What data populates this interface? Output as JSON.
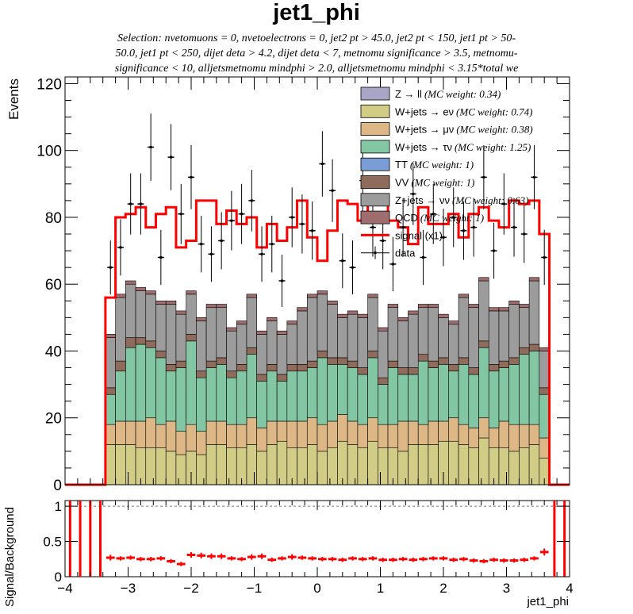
{
  "title": "jet1_phi",
  "selection_lines": [
    "Selection: nvetomuons = 0, nvetoelectrons = 0, jet2 pt > 45.0, jet2 pt < 150, jet1 pt > 50-",
    "50.0, jet1 pt < 250, dijet deta > 4.2, dijet deta < 7, metnomu significance > 3.5, metnomu-",
    "significance < 10, alljetsmetnomu mindphi > 2.0, alljetsmetnomu mindphi < 3.15*total we"
  ],
  "colors": {
    "zll": "#a9a5c6",
    "wen": "#d2cd86",
    "wmn": "#ddb785",
    "wtn": "#82c6a3",
    "tt": "#7b9dd6",
    "vv": "#8f6b5c",
    "znn": "#9c9c9c",
    "qcd": "#9f6d6d",
    "signal": "#ff0000",
    "data": "#000000"
  },
  "legend": [
    {
      "key": "zll",
      "name": "Z → ll",
      "weight": "(MC weight: 0.34)"
    },
    {
      "key": "wen",
      "name": "W+jets → eν",
      "weight": "(MC weight: 0.74)"
    },
    {
      "key": "wmn",
      "name": "W+jets → μν",
      "weight": "(MC weight: 0.38)"
    },
    {
      "key": "wtn",
      "name": "W+jets → τν",
      "weight": "(MC weight: 1.25)"
    },
    {
      "key": "tt",
      "name": "TT",
      "weight": "(MC weight: 1)"
    },
    {
      "key": "vv",
      "name": "VV",
      "weight": "(MC weight: 1)"
    },
    {
      "key": "znn",
      "name": "Z+jets → νν",
      "weight": "(MC weight: 0.63)"
    },
    {
      "key": "qcd",
      "name": "QCD",
      "weight": "(MC weight: 1)"
    },
    {
      "key": "signal",
      "name": "signal (x1)",
      "weight": ""
    },
    {
      "key": "data",
      "name": "data",
      "weight": ""
    }
  ],
  "chart_data": [
    {
      "type": "histogram",
      "name": "main",
      "ylabel": "Events",
      "xlim": [
        -4,
        4
      ],
      "ylim": [
        0,
        122
      ],
      "yticks": [
        0,
        20,
        40,
        60,
        80,
        100,
        120
      ],
      "bin_edges_range": [
        -4,
        4
      ],
      "n_bins": 50,
      "series": {
        "wen": [
          0,
          0,
          0,
          0,
          12,
          12,
          12,
          11,
          11,
          11,
          10,
          9,
          10,
          9,
          12,
          12,
          11,
          11,
          12,
          10,
          12,
          13,
          11,
          11,
          12,
          10,
          11,
          13,
          12,
          11,
          13,
          11,
          11,
          10,
          12,
          12,
          12,
          13,
          13,
          12,
          11,
          14,
          11,
          11,
          10,
          11,
          12,
          8,
          0,
          0
        ],
        "wmn": [
          0,
          0,
          0,
          0,
          6,
          7,
          7,
          8,
          9,
          7,
          9,
          7,
          8,
          7,
          7,
          7,
          7,
          7,
          8,
          7,
          7,
          6,
          8,
          8,
          8,
          8,
          8,
          8,
          7,
          7,
          7,
          7,
          7,
          9,
          7,
          6,
          7,
          6,
          7,
          6,
          6,
          6,
          6,
          8,
          8,
          7,
          6,
          6,
          0,
          0
        ],
        "wtn": [
          0,
          0,
          0,
          0,
          9,
          15,
          22,
          23,
          21,
          20,
          15,
          19,
          25,
          16,
          16,
          17,
          14,
          16,
          19,
          14,
          15,
          12,
          15,
          15,
          15,
          20,
          17,
          15,
          16,
          15,
          18,
          12,
          17,
          14,
          14,
          19,
          16,
          17,
          14,
          18,
          16,
          21,
          17,
          16,
          18,
          21,
          22,
          13,
          0,
          0
        ],
        "vv": [
          0,
          0,
          0,
          0,
          2,
          3,
          3,
          2,
          2,
          2,
          2,
          2,
          2,
          2,
          2,
          2,
          2,
          2,
          2,
          2,
          2,
          2,
          2,
          2,
          2,
          2,
          2,
          2,
          2,
          2,
          2,
          2,
          2,
          2,
          2,
          2,
          2,
          2,
          2,
          2,
          2,
          2,
          2,
          2,
          2,
          2,
          2,
          2,
          0,
          0
        ],
        "znn": [
          0,
          0,
          0,
          0,
          15,
          19,
          16,
          14,
          14,
          14,
          18,
          14,
          12,
          15,
          16,
          15,
          12,
          12,
          15,
          12,
          13,
          12,
          12,
          16,
          19,
          17,
          16,
          12,
          14,
          15,
          16,
          14,
          16,
          14,
          16,
          14,
          16,
          12,
          12,
          18,
          18,
          18,
          16,
          15,
          16,
          12,
          19,
          11,
          0,
          0
        ],
        "qcd": [
          0,
          0,
          0,
          0,
          1,
          1,
          1,
          1,
          1,
          1,
          1,
          1,
          1,
          1,
          1,
          1,
          1,
          1,
          1,
          1,
          1,
          1,
          1,
          1,
          1,
          1,
          1,
          1,
          1,
          1,
          1,
          1,
          1,
          1,
          1,
          1,
          1,
          1,
          1,
          1,
          1,
          1,
          1,
          1,
          1,
          1,
          1,
          1,
          0,
          0
        ],
        "signal": [
          0,
          0,
          0,
          0,
          56,
          80,
          81,
          83,
          77,
          81,
          83,
          71,
          73,
          85,
          85,
          78,
          82,
          78,
          80,
          71,
          78,
          73,
          77,
          85,
          74,
          67,
          76,
          85,
          84,
          79,
          84,
          84,
          79,
          77,
          72,
          83,
          78,
          78,
          81,
          74,
          81,
          83,
          79,
          77,
          85,
          84,
          85,
          75,
          0,
          0
        ],
        "data": [
          0,
          0,
          0,
          0,
          65,
          71,
          84,
          84,
          101,
          68,
          98,
          81,
          92,
          72,
          69,
          73,
          79,
          81,
          85,
          69,
          72,
          61,
          80,
          78,
          76,
          96,
          88,
          67,
          65,
          91,
          77,
          73,
          66,
          77,
          87,
          68,
          81,
          74,
          80,
          76,
          77,
          92,
          70,
          84,
          77,
          75,
          92,
          68,
          0,
          0
        ],
        "data_err_note": "Poisson errors sqrt(N)"
      }
    },
    {
      "type": "scatter",
      "name": "ratio",
      "ylabel": "Signal/Background",
      "xlabel": "jet1_phi",
      "xlim": [
        -4,
        4
      ],
      "ylim": [
        0,
        1.08
      ],
      "yticks": [
        0,
        0.5,
        1
      ],
      "xticks": [
        -4,
        -3,
        -2,
        -1,
        0,
        1,
        2,
        3,
        4
      ],
      "values": [
        1,
        1,
        1,
        1,
        0.27,
        0.26,
        0.27,
        0.25,
        0.25,
        0.26,
        0.22,
        0.18,
        0.31,
        0.3,
        0.29,
        0.29,
        0.26,
        0.25,
        0.28,
        0.29,
        0.24,
        0.26,
        0.28,
        0.27,
        0.26,
        0.25,
        0.25,
        0.24,
        0.26,
        0.25,
        0.26,
        0.24,
        0.24,
        0.25,
        0.24,
        0.25,
        0.26,
        0.26,
        0.24,
        0.25,
        0.23,
        0.22,
        0.24,
        0.23,
        0.23,
        0.24,
        0.26,
        0.35,
        1,
        1
      ],
      "errors": [
        0,
        0,
        0,
        0,
        0.04,
        0.03,
        0.03,
        0.03,
        0.03,
        0.03,
        0.03,
        0.03,
        0.04,
        0.04,
        0.04,
        0.04,
        0.03,
        0.03,
        0.04,
        0.04,
        0.03,
        0.03,
        0.04,
        0.03,
        0.03,
        0.03,
        0.03,
        0.03,
        0.03,
        0.03,
        0.03,
        0.03,
        0.03,
        0.03,
        0.03,
        0.03,
        0.03,
        0.03,
        0.03,
        0.03,
        0.03,
        0.03,
        0.03,
        0.03,
        0.03,
        0.03,
        0.03,
        0.05,
        0,
        0
      ]
    }
  ]
}
